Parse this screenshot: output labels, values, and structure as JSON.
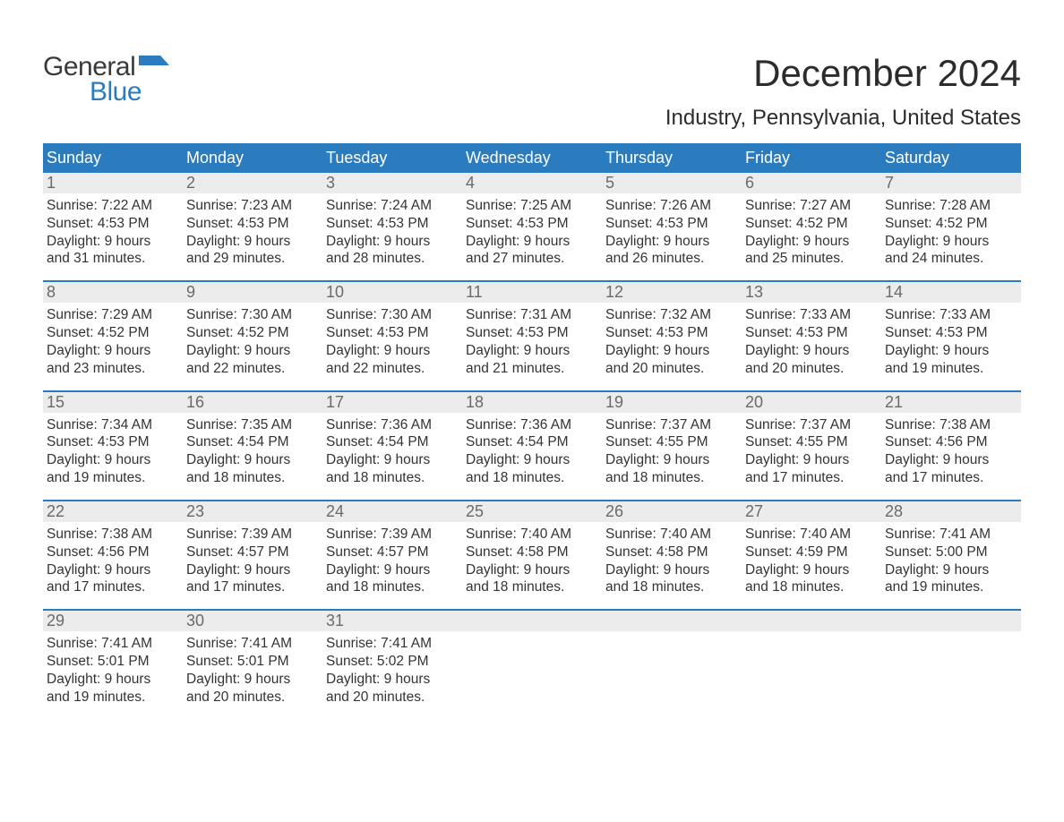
{
  "logo": {
    "general": "General",
    "blue": "Blue",
    "flag_color": "#2b7bbf"
  },
  "title": "December 2024",
  "location": "Industry, Pennsylvania, United States",
  "header_bg": "#2b7bbf",
  "header_text": "#ffffff",
  "daynum_bg": "#ececec",
  "week_border": "#2b7bbf",
  "weekdays": [
    "Sunday",
    "Monday",
    "Tuesday",
    "Wednesday",
    "Thursday",
    "Friday",
    "Saturday"
  ],
  "weeks": [
    [
      {
        "n": "1",
        "sunrise": "Sunrise: 7:22 AM",
        "sunset": "Sunset: 4:53 PM",
        "d1": "Daylight: 9 hours",
        "d2": "and 31 minutes."
      },
      {
        "n": "2",
        "sunrise": "Sunrise: 7:23 AM",
        "sunset": "Sunset: 4:53 PM",
        "d1": "Daylight: 9 hours",
        "d2": "and 29 minutes."
      },
      {
        "n": "3",
        "sunrise": "Sunrise: 7:24 AM",
        "sunset": "Sunset: 4:53 PM",
        "d1": "Daylight: 9 hours",
        "d2": "and 28 minutes."
      },
      {
        "n": "4",
        "sunrise": "Sunrise: 7:25 AM",
        "sunset": "Sunset: 4:53 PM",
        "d1": "Daylight: 9 hours",
        "d2": "and 27 minutes."
      },
      {
        "n": "5",
        "sunrise": "Sunrise: 7:26 AM",
        "sunset": "Sunset: 4:53 PM",
        "d1": "Daylight: 9 hours",
        "d2": "and 26 minutes."
      },
      {
        "n": "6",
        "sunrise": "Sunrise: 7:27 AM",
        "sunset": "Sunset: 4:52 PM",
        "d1": "Daylight: 9 hours",
        "d2": "and 25 minutes."
      },
      {
        "n": "7",
        "sunrise": "Sunrise: 7:28 AM",
        "sunset": "Sunset: 4:52 PM",
        "d1": "Daylight: 9 hours",
        "d2": "and 24 minutes."
      }
    ],
    [
      {
        "n": "8",
        "sunrise": "Sunrise: 7:29 AM",
        "sunset": "Sunset: 4:52 PM",
        "d1": "Daylight: 9 hours",
        "d2": "and 23 minutes."
      },
      {
        "n": "9",
        "sunrise": "Sunrise: 7:30 AM",
        "sunset": "Sunset: 4:52 PM",
        "d1": "Daylight: 9 hours",
        "d2": "and 22 minutes."
      },
      {
        "n": "10",
        "sunrise": "Sunrise: 7:30 AM",
        "sunset": "Sunset: 4:53 PM",
        "d1": "Daylight: 9 hours",
        "d2": "and 22 minutes."
      },
      {
        "n": "11",
        "sunrise": "Sunrise: 7:31 AM",
        "sunset": "Sunset: 4:53 PM",
        "d1": "Daylight: 9 hours",
        "d2": "and 21 minutes."
      },
      {
        "n": "12",
        "sunrise": "Sunrise: 7:32 AM",
        "sunset": "Sunset: 4:53 PM",
        "d1": "Daylight: 9 hours",
        "d2": "and 20 minutes."
      },
      {
        "n": "13",
        "sunrise": "Sunrise: 7:33 AM",
        "sunset": "Sunset: 4:53 PM",
        "d1": "Daylight: 9 hours",
        "d2": "and 20 minutes."
      },
      {
        "n": "14",
        "sunrise": "Sunrise: 7:33 AM",
        "sunset": "Sunset: 4:53 PM",
        "d1": "Daylight: 9 hours",
        "d2": "and 19 minutes."
      }
    ],
    [
      {
        "n": "15",
        "sunrise": "Sunrise: 7:34 AM",
        "sunset": "Sunset: 4:53 PM",
        "d1": "Daylight: 9 hours",
        "d2": "and 19 minutes."
      },
      {
        "n": "16",
        "sunrise": "Sunrise: 7:35 AM",
        "sunset": "Sunset: 4:54 PM",
        "d1": "Daylight: 9 hours",
        "d2": "and 18 minutes."
      },
      {
        "n": "17",
        "sunrise": "Sunrise: 7:36 AM",
        "sunset": "Sunset: 4:54 PM",
        "d1": "Daylight: 9 hours",
        "d2": "and 18 minutes."
      },
      {
        "n": "18",
        "sunrise": "Sunrise: 7:36 AM",
        "sunset": "Sunset: 4:54 PM",
        "d1": "Daylight: 9 hours",
        "d2": "and 18 minutes."
      },
      {
        "n": "19",
        "sunrise": "Sunrise: 7:37 AM",
        "sunset": "Sunset: 4:55 PM",
        "d1": "Daylight: 9 hours",
        "d2": "and 18 minutes."
      },
      {
        "n": "20",
        "sunrise": "Sunrise: 7:37 AM",
        "sunset": "Sunset: 4:55 PM",
        "d1": "Daylight: 9 hours",
        "d2": "and 17 minutes."
      },
      {
        "n": "21",
        "sunrise": "Sunrise: 7:38 AM",
        "sunset": "Sunset: 4:56 PM",
        "d1": "Daylight: 9 hours",
        "d2": "and 17 minutes."
      }
    ],
    [
      {
        "n": "22",
        "sunrise": "Sunrise: 7:38 AM",
        "sunset": "Sunset: 4:56 PM",
        "d1": "Daylight: 9 hours",
        "d2": "and 17 minutes."
      },
      {
        "n": "23",
        "sunrise": "Sunrise: 7:39 AM",
        "sunset": "Sunset: 4:57 PM",
        "d1": "Daylight: 9 hours",
        "d2": "and 17 minutes."
      },
      {
        "n": "24",
        "sunrise": "Sunrise: 7:39 AM",
        "sunset": "Sunset: 4:57 PM",
        "d1": "Daylight: 9 hours",
        "d2": "and 18 minutes."
      },
      {
        "n": "25",
        "sunrise": "Sunrise: 7:40 AM",
        "sunset": "Sunset: 4:58 PM",
        "d1": "Daylight: 9 hours",
        "d2": "and 18 minutes."
      },
      {
        "n": "26",
        "sunrise": "Sunrise: 7:40 AM",
        "sunset": "Sunset: 4:58 PM",
        "d1": "Daylight: 9 hours",
        "d2": "and 18 minutes."
      },
      {
        "n": "27",
        "sunrise": "Sunrise: 7:40 AM",
        "sunset": "Sunset: 4:59 PM",
        "d1": "Daylight: 9 hours",
        "d2": "and 18 minutes."
      },
      {
        "n": "28",
        "sunrise": "Sunrise: 7:41 AM",
        "sunset": "Sunset: 5:00 PM",
        "d1": "Daylight: 9 hours",
        "d2": "and 19 minutes."
      }
    ],
    [
      {
        "n": "29",
        "sunrise": "Sunrise: 7:41 AM",
        "sunset": "Sunset: 5:01 PM",
        "d1": "Daylight: 9 hours",
        "d2": "and 19 minutes."
      },
      {
        "n": "30",
        "sunrise": "Sunrise: 7:41 AM",
        "sunset": "Sunset: 5:01 PM",
        "d1": "Daylight: 9 hours",
        "d2": "and 20 minutes."
      },
      {
        "n": "31",
        "sunrise": "Sunrise: 7:41 AM",
        "sunset": "Sunset: 5:02 PM",
        "d1": "Daylight: 9 hours",
        "d2": "and 20 minutes."
      },
      {
        "n": "",
        "sunrise": "",
        "sunset": "",
        "d1": "",
        "d2": ""
      },
      {
        "n": "",
        "sunrise": "",
        "sunset": "",
        "d1": "",
        "d2": ""
      },
      {
        "n": "",
        "sunrise": "",
        "sunset": "",
        "d1": "",
        "d2": ""
      },
      {
        "n": "",
        "sunrise": "",
        "sunset": "",
        "d1": "",
        "d2": ""
      }
    ]
  ]
}
